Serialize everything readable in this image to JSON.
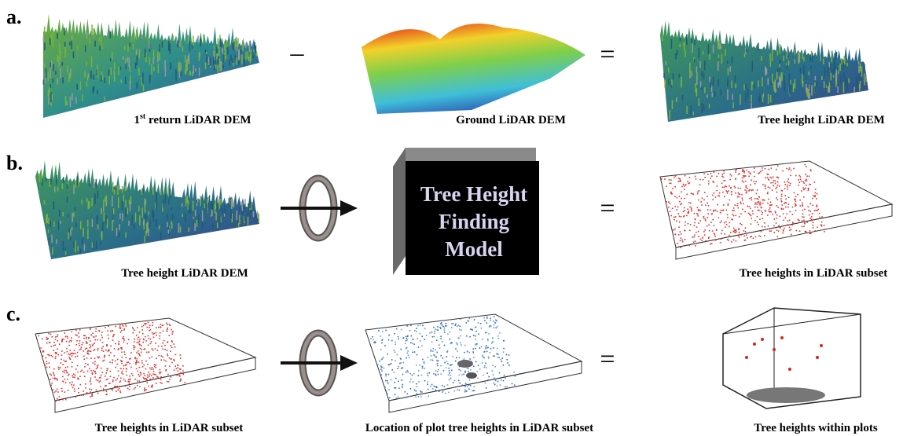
{
  "rows": [
    {
      "label": "a.",
      "captions": [
        {
          "number": "1",
          "sup": "st",
          "rest": " return LiDAR DEM"
        },
        {
          "text": "Ground LiDAR DEM"
        },
        {
          "text": "Tree height LiDAR DEM"
        }
      ],
      "operators": [
        "–",
        "="
      ]
    },
    {
      "label": "b.",
      "captions": [
        {
          "text": "Tree height LiDAR DEM"
        },
        {
          "text": "Tree heights in LiDAR subset"
        }
      ],
      "model": [
        "Tree Height",
        "Finding",
        "Model"
      ],
      "operators": [
        "="
      ]
    },
    {
      "label": "c.",
      "captions": [
        {
          "text": "Tree heights in LiDAR subset"
        },
        {
          "text": "Location of plot tree heights in LiDAR subset"
        },
        {
          "text": "Tree heights within plots"
        }
      ],
      "operators": [
        "="
      ]
    }
  ]
}
